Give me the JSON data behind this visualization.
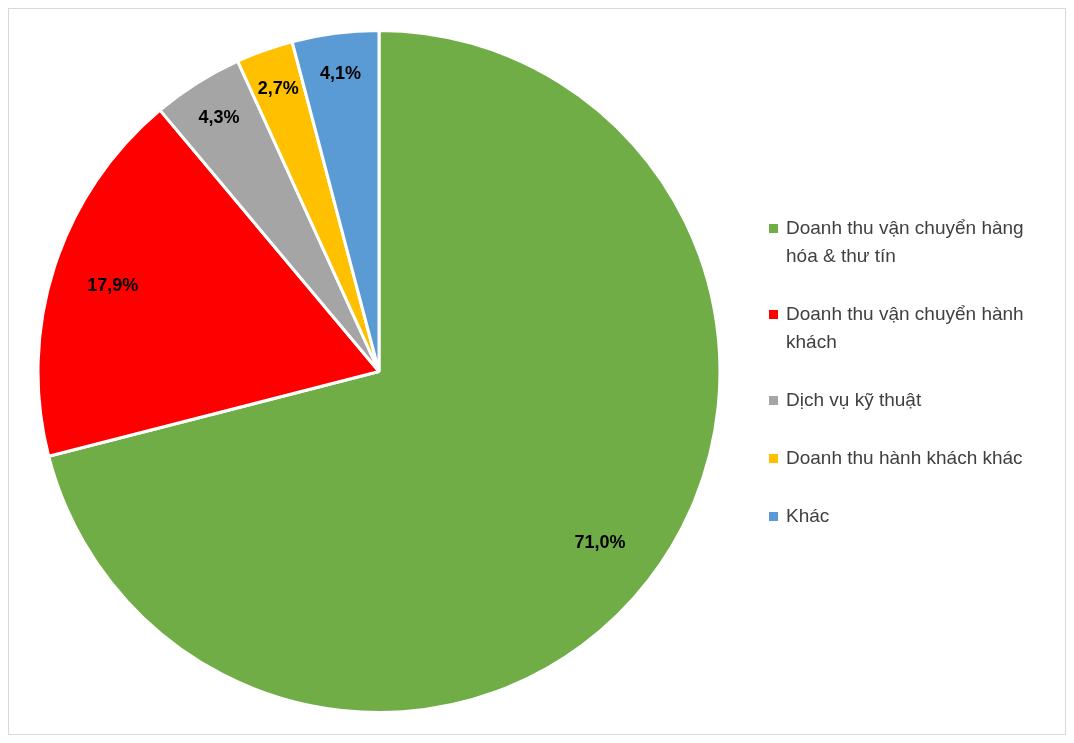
{
  "chart_data": {
    "type": "pie",
    "categories": [
      "Doanh thu vận chuyển hàng hóa & thư tín",
      "Doanh thu vận chuyển hành khách",
      "Dịch vụ kỹ thuật",
      "Doanh thu hành khách khác",
      "Khác"
    ],
    "values": [
      71.0,
      17.9,
      4.3,
      2.7,
      4.1
    ],
    "colors": [
      "#70ad47",
      "#ff0000",
      "#a5a5a5",
      "#ffc000",
      "#5b9bd5"
    ],
    "value_labels": [
      "71,0%",
      "17,9%",
      "4,3%",
      "2,7%",
      "4,1%"
    ],
    "legend": "right"
  }
}
